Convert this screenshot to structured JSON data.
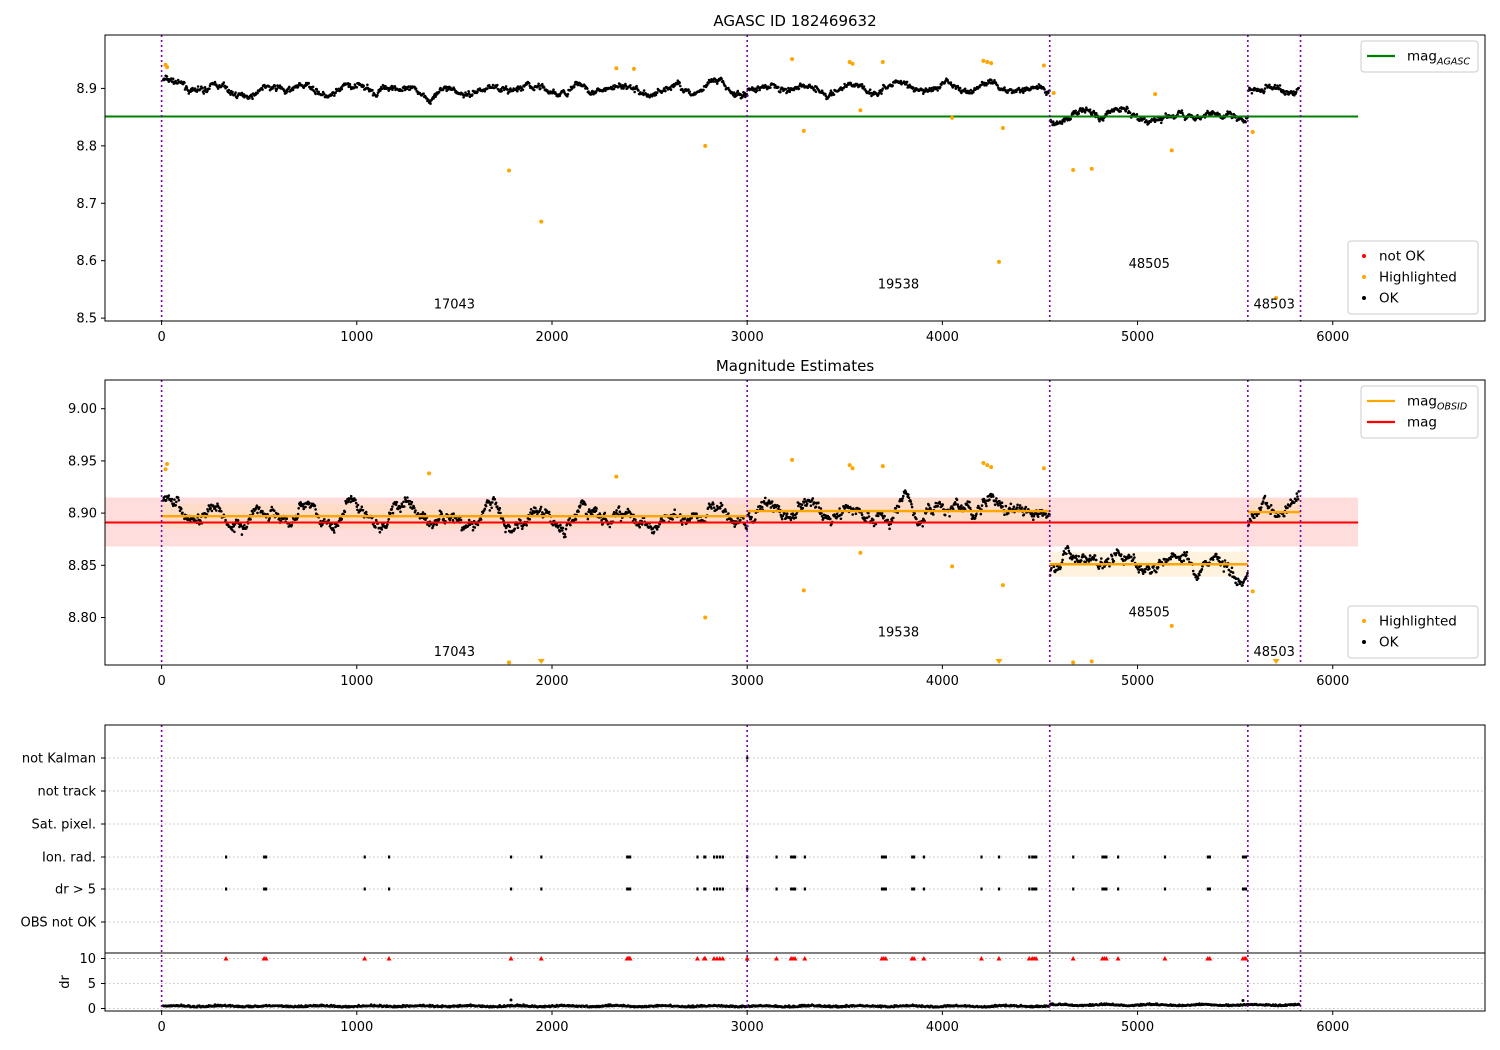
{
  "chart_data": [
    {
      "type": "scatter",
      "title": "AGASC ID 182469632",
      "xlabel": "",
      "ylabel": "",
      "xlim": [
        -290,
        6780
      ],
      "ylim": [
        8.495,
        8.993
      ],
      "xticks": [
        0,
        1000,
        2000,
        3000,
        4000,
        5000,
        6000
      ],
      "yticks": [
        8.5,
        8.6,
        8.7,
        8.8,
        8.9
      ],
      "ytick_labels": [
        "8.5",
        "8.6",
        "8.7",
        "8.8",
        "8.9"
      ],
      "observation_boundaries": [
        0,
        3000,
        4550,
        5565,
        5835
      ],
      "segments": [
        {
          "x0": 0,
          "x1": 3000,
          "mean": 8.897
        },
        {
          "x0": 3000,
          "x1": 4550,
          "mean": 8.902
        },
        {
          "x0": 4550,
          "x1": 5565,
          "mean": 8.851
        },
        {
          "x0": 5565,
          "x1": 5835,
          "mean": 8.901
        }
      ],
      "series": [
        {
          "name": "mag_AGASC",
          "kind": "hline",
          "y": 8.851,
          "x0": -290,
          "x1": 6130,
          "color": "#008000"
        }
      ],
      "highlighted_points": [
        {
          "x": 20,
          "y": 8.941
        },
        {
          "x": 28,
          "y": 8.937
        },
        {
          "x": 1780,
          "y": 8.757
        },
        {
          "x": 1945,
          "y": 8.668
        },
        {
          "x": 2785,
          "y": 8.8
        },
        {
          "x": 2330,
          "y": 8.935
        },
        {
          "x": 2420,
          "y": 8.934
        },
        {
          "x": 3230,
          "y": 8.951
        },
        {
          "x": 3290,
          "y": 8.826
        },
        {
          "x": 3525,
          "y": 8.946
        },
        {
          "x": 3540,
          "y": 8.943
        },
        {
          "x": 3580,
          "y": 8.862
        },
        {
          "x": 3695,
          "y": 8.946
        },
        {
          "x": 4050,
          "y": 8.849
        },
        {
          "x": 4210,
          "y": 8.948
        },
        {
          "x": 4230,
          "y": 8.946
        },
        {
          "x": 4250,
          "y": 8.944
        },
        {
          "x": 4290,
          "y": 8.598
        },
        {
          "x": 4310,
          "y": 8.831
        },
        {
          "x": 4520,
          "y": 8.94
        },
        {
          "x": 4570,
          "y": 8.892
        },
        {
          "x": 4670,
          "y": 8.758
        },
        {
          "x": 4765,
          "y": 8.76
        },
        {
          "x": 5090,
          "y": 8.89
        },
        {
          "x": 5175,
          "y": 8.792
        },
        {
          "x": 5590,
          "y": 8.824
        },
        {
          "x": 5710,
          "y": 8.535
        }
      ],
      "obsid_labels": [
        {
          "text": "17043",
          "x": 1500,
          "y": 8.517
        },
        {
          "text": "19538",
          "x": 3775,
          "y": 8.552
        },
        {
          "text": "48505",
          "x": 5060,
          "y": 8.587
        },
        {
          "text": "48503",
          "x": 5700,
          "y": 8.517
        }
      ],
      "legends": [
        {
          "position": "top-right",
          "items": [
            {
              "label": "mag",
              "sub": "AGASC",
              "color": "#008000",
              "marker": "line"
            }
          ]
        },
        {
          "position": "bottom-right",
          "items": [
            {
              "label": "not OK",
              "color": "#ff0000",
              "marker": "dot"
            },
            {
              "label": "Highlighted",
              "color": "#ffa500",
              "marker": "dot"
            },
            {
              "label": "OK",
              "color": "#000000",
              "marker": "dot"
            }
          ]
        }
      ]
    },
    {
      "type": "scatter",
      "title": "Magnitude Estimates",
      "xlabel": "",
      "ylabel": "",
      "xlim": [
        -290,
        6780
      ],
      "ylim": [
        8.7545,
        9.0275
      ],
      "xticks": [
        0,
        1000,
        2000,
        3000,
        4000,
        5000,
        6000
      ],
      "yticks": [
        8.8,
        8.85,
        8.9,
        8.95,
        9.0
      ],
      "ytick_labels": [
        "8.80",
        "8.85",
        "8.90",
        "8.95",
        "9.00"
      ],
      "observation_boundaries": [
        0,
        3000,
        4550,
        5565,
        5835
      ],
      "band": {
        "y0": 8.868,
        "y1": 8.915,
        "x0": -290,
        "x1": 6130,
        "color": "#ffdddd"
      },
      "segments": [
        {
          "x0": 0,
          "x1": 3000,
          "mean": 8.897
        },
        {
          "x0": 3000,
          "x1": 4550,
          "mean": 8.902
        },
        {
          "x0": 4550,
          "x1": 5565,
          "mean": 8.851
        },
        {
          "x0": 5565,
          "x1": 5835,
          "mean": 8.901
        }
      ],
      "series": [
        {
          "name": "mag_OBSID",
          "kind": "steps",
          "color": "#ffa500"
        },
        {
          "name": "mag",
          "kind": "hline",
          "y": 8.891,
          "x0": -290,
          "x1": 6130,
          "color": "#ff0000"
        }
      ],
      "highlighted_points": [
        {
          "x": 20,
          "y": 8.942
        },
        {
          "x": 28,
          "y": 8.947
        },
        {
          "x": 1370,
          "y": 8.938
        },
        {
          "x": 2330,
          "y": 8.935
        },
        {
          "x": 2785,
          "y": 8.8
        },
        {
          "x": 3230,
          "y": 8.951
        },
        {
          "x": 3290,
          "y": 8.826
        },
        {
          "x": 3525,
          "y": 8.946
        },
        {
          "x": 3540,
          "y": 8.943
        },
        {
          "x": 3580,
          "y": 8.862
        },
        {
          "x": 3695,
          "y": 8.945
        },
        {
          "x": 4050,
          "y": 8.849
        },
        {
          "x": 4210,
          "y": 8.948
        },
        {
          "x": 4230,
          "y": 8.946
        },
        {
          "x": 4250,
          "y": 8.944
        },
        {
          "x": 4310,
          "y": 8.831
        },
        {
          "x": 4520,
          "y": 8.943
        },
        {
          "x": 5590,
          "y": 8.825
        },
        {
          "x": 5175,
          "y": 8.792
        },
        {
          "x": 1780,
          "y": 8.757
        },
        {
          "x": 4670,
          "y": 8.757
        },
        {
          "x": 4765,
          "y": 8.758
        }
      ],
      "clipped_points": [
        {
          "x": 1945
        },
        {
          "x": 4290
        },
        {
          "x": 5710
        }
      ],
      "obsid_labels": [
        {
          "text": "17043",
          "x": 1500,
          "y": 8.763
        },
        {
          "text": "19538",
          "x": 3775,
          "y": 8.782
        },
        {
          "text": "48505",
          "x": 5060,
          "y": 8.801
        },
        {
          "text": "48503",
          "x": 5700,
          "y": 8.763
        }
      ],
      "legends": [
        {
          "position": "top-right",
          "items": [
            {
              "label": "mag",
              "sub": "OBSID",
              "color": "#ffa500",
              "marker": "line"
            },
            {
              "label": "mag",
              "sub": "",
              "color": "#ff0000",
              "marker": "line"
            }
          ]
        },
        {
          "position": "bottom-right",
          "items": [
            {
              "label": "Highlighted",
              "color": "#ffa500",
              "marker": "dot"
            },
            {
              "label": "OK",
              "color": "#000000",
              "marker": "dot"
            }
          ]
        }
      ]
    },
    {
      "type": "scatter",
      "title": "",
      "xlabel": "",
      "xlim": [
        -290,
        6780
      ],
      "xticks": [
        0,
        1000,
        2000,
        3000,
        4000,
        5000,
        6000
      ],
      "observation_boundaries": [
        0,
        3000,
        4550,
        5565,
        5835
      ],
      "flag_rows": [
        "not Kalman",
        "not track",
        "Sat. pixel.",
        "Ion. rad.",
        "dr > 5",
        "OBS not OK"
      ],
      "flag_events": {
        "not Kalman": [
          3000
        ],
        "not track": [],
        "Sat. pixel.": [],
        "Ion. rad.": [
          330,
          525,
          535,
          1040,
          1165,
          1790,
          1945,
          2385,
          2390,
          2395,
          2400,
          2745,
          2780,
          2785,
          2830,
          2845,
          2860,
          2875,
          3000,
          3150,
          3225,
          3235,
          3245,
          3295,
          3690,
          3700,
          3710,
          3845,
          3855,
          3905,
          4200,
          4290,
          4445,
          4460,
          4470,
          4480,
          4670,
          4820,
          4830,
          4840,
          4900,
          5140,
          5360,
          5370,
          5540,
          5550,
          5555
        ],
        "dr > 5": [
          330,
          525,
          535,
          1040,
          1165,
          1790,
          1945,
          2385,
          2390,
          2395,
          2400,
          2745,
          2780,
          2785,
          2830,
          2845,
          2860,
          2875,
          3000,
          3150,
          3225,
          3235,
          3245,
          3295,
          3690,
          3700,
          3710,
          3845,
          3855,
          3905,
          4200,
          4290,
          4445,
          4460,
          4470,
          4480,
          4670,
          4820,
          4830,
          4840,
          4900,
          5140,
          5360,
          5370,
          5540,
          5550,
          5555
        ],
        "OBS not OK": []
      },
      "dr": {
        "ylabel": "dr",
        "ylim": [
          -0.3,
          10.5
        ],
        "yticks": [
          0,
          5,
          10
        ],
        "ytick_labels": [
          "0",
          "5",
          "10"
        ],
        "clip_value": 10,
        "clip_marker_color": "#ff0000",
        "outliers": [
          {
            "x": 1790,
            "y": 1.7
          },
          {
            "x": 5540,
            "y": 1.6
          }
        ]
      }
    }
  ]
}
